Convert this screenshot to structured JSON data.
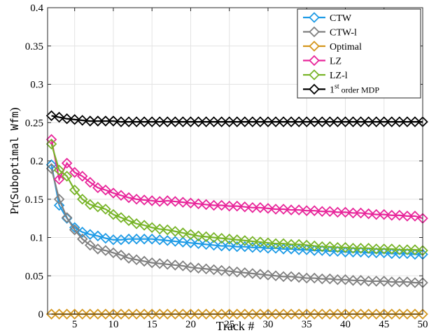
{
  "chart_data": {
    "type": "line",
    "xlabel": "Track #",
    "ylabel_prefix": "Pr(",
    "ylabel_mono": "Suboptimal Wfm",
    "ylabel_suffix": ")",
    "xlim": [
      1.5,
      50
    ],
    "ylim": [
      0,
      0.4
    ],
    "grid": true,
    "legend_position": "top-right",
    "xticks": [
      5,
      10,
      15,
      20,
      25,
      30,
      35,
      40,
      45,
      50
    ],
    "yticks": [
      0,
      0.05,
      0.1,
      0.15,
      0.2,
      0.25,
      0.3,
      0.35,
      0.4
    ],
    "xtick_labels": [
      "5",
      "10",
      "15",
      "20",
      "25",
      "30",
      "35",
      "40",
      "45",
      "50"
    ],
    "ytick_labels": [
      "0",
      "0.05",
      "0.1",
      "0.15",
      "0.2",
      "0.25",
      "0.3",
      "0.35",
      "0.4"
    ],
    "x": [
      2,
      3,
      4,
      5,
      6,
      7,
      8,
      9,
      10,
      11,
      12,
      13,
      14,
      15,
      16,
      17,
      18,
      19,
      20,
      21,
      22,
      23,
      24,
      25,
      26,
      27,
      28,
      29,
      30,
      31,
      32,
      33,
      34,
      35,
      36,
      37,
      38,
      39,
      40,
      41,
      42,
      43,
      44,
      45,
      46,
      47,
      48,
      49,
      50
    ],
    "series": [
      {
        "name": "CTW",
        "color": "#1e9be6",
        "values": [
          0.195,
          0.142,
          0.125,
          0.113,
          0.107,
          0.104,
          0.102,
          0.099,
          0.097,
          0.097,
          0.098,
          0.098,
          0.098,
          0.098,
          0.097,
          0.096,
          0.095,
          0.094,
          0.093,
          0.092,
          0.091,
          0.09,
          0.089,
          0.089,
          0.088,
          0.088,
          0.087,
          0.087,
          0.086,
          0.086,
          0.085,
          0.085,
          0.084,
          0.084,
          0.083,
          0.083,
          0.082,
          0.082,
          0.081,
          0.081,
          0.081,
          0.08,
          0.08,
          0.08,
          0.079,
          0.079,
          0.079,
          0.078,
          0.078
        ]
      },
      {
        "name": "CTW-l",
        "color": "#808080",
        "values": [
          0.19,
          0.15,
          0.126,
          0.11,
          0.098,
          0.09,
          0.085,
          0.083,
          0.08,
          0.077,
          0.073,
          0.071,
          0.069,
          0.067,
          0.066,
          0.065,
          0.064,
          0.063,
          0.061,
          0.06,
          0.059,
          0.058,
          0.057,
          0.056,
          0.055,
          0.054,
          0.053,
          0.052,
          0.051,
          0.05,
          0.049,
          0.049,
          0.048,
          0.047,
          0.047,
          0.046,
          0.046,
          0.045,
          0.045,
          0.044,
          0.044,
          0.043,
          0.043,
          0.043,
          0.042,
          0.042,
          0.042,
          0.041,
          0.041
        ]
      },
      {
        "name": "Optimal",
        "color": "#d4961c",
        "values": [
          0,
          0,
          0,
          0,
          0,
          0,
          0,
          0,
          0,
          0,
          0,
          0,
          0,
          0,
          0,
          0,
          0,
          0,
          0,
          0,
          0,
          0,
          0,
          0,
          0,
          0,
          0,
          0,
          0,
          0,
          0,
          0,
          0,
          0,
          0,
          0,
          0,
          0,
          0,
          0,
          0,
          0,
          0,
          0,
          0,
          0,
          0,
          0,
          0
        ]
      },
      {
        "name": "LZ",
        "color": "#e8259a",
        "values": [
          0.228,
          0.176,
          0.197,
          0.185,
          0.18,
          0.172,
          0.165,
          0.162,
          0.158,
          0.155,
          0.152,
          0.15,
          0.149,
          0.148,
          0.147,
          0.148,
          0.147,
          0.146,
          0.145,
          0.144,
          0.143,
          0.142,
          0.142,
          0.141,
          0.141,
          0.14,
          0.139,
          0.139,
          0.138,
          0.137,
          0.137,
          0.136,
          0.136,
          0.135,
          0.135,
          0.134,
          0.134,
          0.133,
          0.133,
          0.132,
          0.132,
          0.131,
          0.13,
          0.13,
          0.129,
          0.129,
          0.128,
          0.128,
          0.125
        ]
      },
      {
        "name": "LZ-l",
        "color": "#78b428",
        "values": [
          0.222,
          0.188,
          0.18,
          0.162,
          0.15,
          0.143,
          0.14,
          0.137,
          0.13,
          0.126,
          0.122,
          0.118,
          0.116,
          0.113,
          0.111,
          0.11,
          0.108,
          0.106,
          0.104,
          0.102,
          0.101,
          0.1,
          0.099,
          0.098,
          0.097,
          0.096,
          0.095,
          0.094,
          0.093,
          0.092,
          0.092,
          0.091,
          0.091,
          0.09,
          0.089,
          0.088,
          0.088,
          0.087,
          0.087,
          0.086,
          0.086,
          0.086,
          0.085,
          0.085,
          0.085,
          0.084,
          0.084,
          0.084,
          0.083
        ]
      },
      {
        "name": "1st order MDP",
        "name_base": "1",
        "name_sup": "st",
        "name_rest": " order MDP",
        "color": "#000000",
        "values": [
          0.259,
          0.257,
          0.255,
          0.254,
          0.253,
          0.252,
          0.252,
          0.252,
          0.252,
          0.251,
          0.251,
          0.251,
          0.251,
          0.251,
          0.251,
          0.251,
          0.251,
          0.251,
          0.251,
          0.251,
          0.251,
          0.251,
          0.251,
          0.251,
          0.251,
          0.251,
          0.251,
          0.251,
          0.251,
          0.251,
          0.251,
          0.251,
          0.251,
          0.251,
          0.251,
          0.251,
          0.251,
          0.251,
          0.251,
          0.251,
          0.251,
          0.251,
          0.251,
          0.251,
          0.251,
          0.251,
          0.251,
          0.251,
          0.251
        ]
      }
    ]
  }
}
